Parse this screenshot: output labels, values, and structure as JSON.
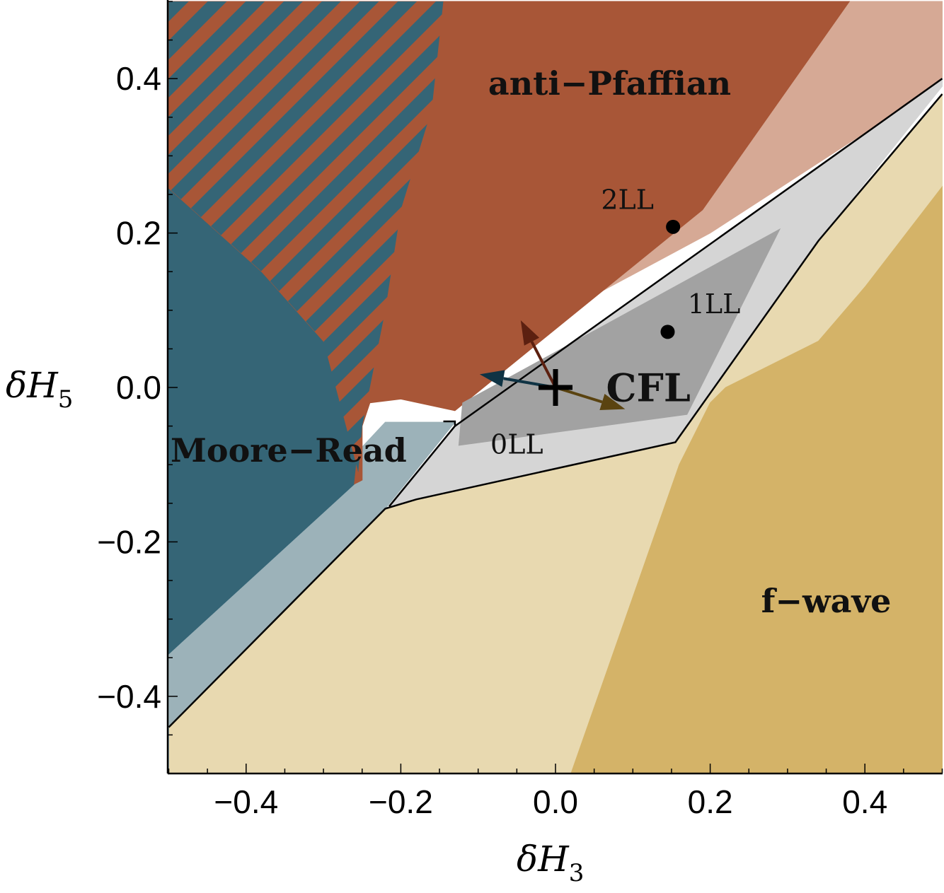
{
  "chart_data": {
    "type": "phase-diagram",
    "xlabel": "δH",
    "xlabel_sub": "3",
    "ylabel": "δH",
    "ylabel_sub": "5",
    "xlim": [
      -0.5,
      0.5
    ],
    "ylim": [
      -0.5,
      0.5
    ],
    "x_ticks": [
      {
        "value": -0.4,
        "label": "−0.4"
      },
      {
        "value": -0.2,
        "label": "−0.2"
      },
      {
        "value": 0.0,
        "label": "0.0"
      },
      {
        "value": 0.2,
        "label": "0.2"
      },
      {
        "value": 0.4,
        "label": "0.4"
      }
    ],
    "y_ticks": [
      {
        "value": -0.4,
        "label": "−0.4"
      },
      {
        "value": -0.2,
        "label": "−0.2"
      },
      {
        "value": 0.0,
        "label": "0.0"
      },
      {
        "value": 0.2,
        "label": "0.2"
      },
      {
        "value": 0.4,
        "label": "0.4"
      }
    ],
    "regions": [
      {
        "id": "fwave-light",
        "color": "#e8d9b0",
        "points": [
          [
            -0.5,
            -0.5
          ],
          [
            0.5,
            -0.5
          ],
          [
            0.5,
            0.38
          ],
          [
            0.34,
            0.19
          ],
          [
            0.155,
            -0.071
          ],
          [
            -0.18,
            -0.145
          ],
          [
            -0.22,
            -0.157
          ],
          [
            -0.5,
            -0.44
          ]
        ]
      },
      {
        "id": "fwave-dark",
        "label": "f−wave",
        "color": "#d4b368",
        "points": [
          [
            0.02,
            -0.5
          ],
          [
            0.5,
            -0.5
          ],
          [
            0.5,
            0.26
          ],
          [
            0.4,
            0.13
          ],
          [
            0.34,
            0.06
          ],
          [
            0.22,
            0.0
          ],
          [
            0.2,
            -0.02
          ],
          [
            0.16,
            -0.1
          ]
        ]
      },
      {
        "id": "mooreread-light",
        "color": "#9cb2b9",
        "points": [
          [
            -0.5,
            -0.5
          ],
          [
            -0.5,
            -0.44
          ],
          [
            -0.22,
            -0.157
          ],
          [
            -0.13,
            -0.045
          ],
          [
            -0.22,
            -0.045
          ],
          [
            -0.5,
            -0.345
          ]
        ]
      },
      {
        "id": "mooreread-dark",
        "label": "Moore−Read",
        "color": "#356576",
        "points": [
          [
            -0.5,
            0.258
          ],
          [
            -0.38,
            0.15
          ],
          [
            -0.3,
            0.06
          ],
          [
            -0.25,
            -0.03
          ],
          [
            -0.26,
            -0.125
          ],
          [
            -0.5,
            -0.345
          ]
        ]
      },
      {
        "id": "antipfaffian-light",
        "color": "#d6a995",
        "points": [
          [
            0.12,
            0.5
          ],
          [
            0.5,
            0.5
          ],
          [
            0.5,
            0.395
          ],
          [
            0.2,
            0.2
          ],
          [
            -0.2,
            -0.015
          ],
          [
            0.19,
            0.23
          ],
          [
            0.38,
            0.5
          ]
        ]
      },
      {
        "id": "antipfaffian-dark",
        "label": "anti−Pfaffian",
        "color": "#a85637",
        "points": [
          [
            -0.5,
            0.5
          ],
          [
            0.38,
            0.5
          ],
          [
            0.19,
            0.23
          ],
          [
            -0.13,
            -0.03
          ],
          [
            -0.2,
            -0.015
          ],
          [
            -0.24,
            -0.02
          ],
          [
            -0.25,
            -0.05
          ],
          [
            -0.25,
            -0.12
          ],
          [
            -0.26,
            -0.125
          ],
          [
            -0.25,
            -0.03
          ],
          [
            -0.3,
            0.06
          ],
          [
            -0.38,
            0.15
          ],
          [
            -0.5,
            0.258
          ]
        ]
      },
      {
        "id": "cfl-light",
        "color": "#d5d5d5",
        "points": [
          [
            -0.215,
            -0.154
          ],
          [
            -0.18,
            -0.145
          ],
          [
            0.155,
            -0.071
          ],
          [
            0.34,
            0.19
          ],
          [
            0.5,
            0.39
          ],
          [
            0.5,
            0.4
          ],
          [
            -0.13,
            -0.05
          ],
          [
            -0.215,
            -0.154
          ]
        ]
      },
      {
        "id": "cfl-dark",
        "label": "CFL",
        "color": "#a2a2a2",
        "points": [
          [
            -0.125,
            -0.075
          ],
          [
            0.17,
            -0.035
          ],
          [
            0.29,
            0.205
          ],
          [
            -0.12,
            -0.02
          ]
        ]
      }
    ],
    "hatch": {
      "id": "mixed-hatch",
      "colors": [
        "#a85637",
        "#356576"
      ],
      "points": [
        [
          -0.5,
          0.5
        ],
        [
          -0.145,
          0.5
        ],
        [
          -0.16,
          0.36
        ],
        [
          -0.2,
          0.23
        ],
        [
          -0.22,
          0.1
        ],
        [
          -0.24,
          0.0
        ],
        [
          -0.25,
          -0.05
        ],
        [
          -0.255,
          -0.11
        ],
        [
          -0.3,
          0.06
        ],
        [
          -0.38,
          0.15
        ],
        [
          -0.5,
          0.258
        ]
      ]
    },
    "boundaries": [
      {
        "id": "lower-boundary",
        "points": [
          [
            -0.5,
            -0.44
          ],
          [
            -0.22,
            -0.157
          ],
          [
            -0.18,
            -0.145
          ],
          [
            0.155,
            -0.071
          ],
          [
            0.34,
            0.19
          ],
          [
            0.5,
            0.38
          ]
        ]
      },
      {
        "id": "upper-boundary",
        "points": [
          [
            -0.215,
            -0.154
          ],
          [
            -0.13,
            -0.05
          ],
          [
            -0.13,
            -0.044
          ],
          [
            -0.145,
            -0.044
          ]
        ]
      },
      {
        "id": "upper-boundary-2",
        "points": [
          [
            -0.13,
            -0.05
          ],
          [
            0.5,
            0.4
          ]
        ]
      }
    ],
    "region_labels": [
      {
        "text": "anti−Pfaffian",
        "x": 0.07,
        "y": 0.39
      },
      {
        "text": "Moore−Read",
        "x": -0.345,
        "y": -0.085
      },
      {
        "text": "CFL",
        "x": 0.12,
        "y": -0.005
      },
      {
        "text": "f−wave",
        "x": 0.35,
        "y": -0.28
      }
    ],
    "points": [
      {
        "label": "2LL",
        "x": 0.152,
        "y": 0.208,
        "label_x": 0.093,
        "label_y": 0.24
      },
      {
        "label": "1LL",
        "x": 0.145,
        "y": 0.072,
        "label_x": 0.205,
        "label_y": 0.105
      },
      {
        "label": "0LL",
        "x": -0.1,
        "y": -0.073,
        "label_x": -0.05,
        "label_y": -0.077,
        "no_marker": true
      }
    ],
    "origin_marker": {
      "x": 0.0,
      "y": 0.0,
      "symbol": "+"
    },
    "arrows": [
      {
        "id": "arrow-red",
        "color": "#5c2010",
        "from": [
          0.0,
          0.0
        ],
        "to": [
          -0.045,
          0.087
        ]
      },
      {
        "id": "arrow-blue",
        "color": "#0f3344",
        "from": [
          0.0,
          0.0
        ],
        "to": [
          -0.098,
          0.017
        ]
      },
      {
        "id": "arrow-gold",
        "color": "#5a4310",
        "from": [
          0.0,
          0.0
        ],
        "to": [
          0.09,
          -0.028
        ]
      }
    ]
  }
}
